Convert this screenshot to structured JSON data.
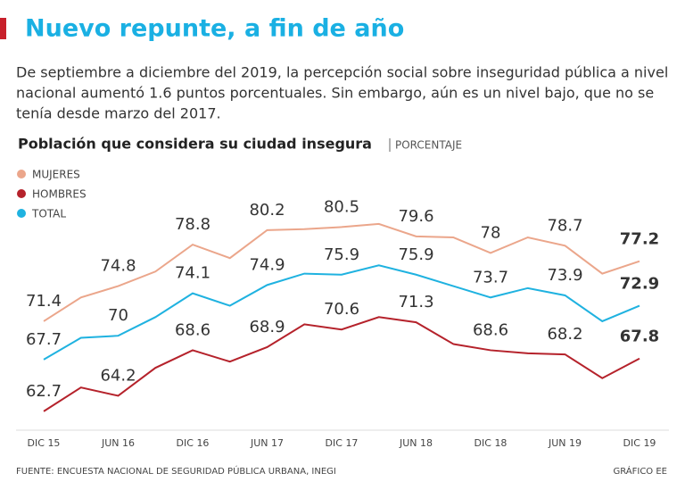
{
  "chart_data": {
    "type": "line",
    "title": "Nuevo repunte, a fin de año",
    "subtitle": [
      "De septiembre a diciembre del 2019, la percepción social sobre inseguridad pública a nivel",
      "nacional aumentó 1.6 puntos porcentuales. Sin embargo, aún es un nivel bajo, que no se",
      "tenía desde marzo del 2017."
    ],
    "chart_title": "Población que considera su ciudad insegura",
    "unit": "PORCENTAJE",
    "categories": [
      "DIC 15",
      null,
      "JUN 16",
      null,
      "DIC 16",
      null,
      "JUN 17",
      null,
      "DIC 17",
      null,
      "JUN 18",
      null,
      "DIC 18",
      null,
      "JUN 19",
      null,
      "DIC 19"
    ],
    "series": [
      {
        "name": "MUJERES",
        "color": "#eba68b",
        "values": [
          71.4,
          73.7,
          74.8,
          76.2,
          78.8,
          77.5,
          80.2,
          80.3,
          80.5,
          80.8,
          79.6,
          79.5,
          78,
          79.5,
          78.7,
          76.0,
          77.2
        ],
        "value_labels": [
          "71.4",
          null,
          "74.8",
          null,
          "78.8",
          null,
          "80.2",
          null,
          "80.5",
          null,
          "79.6",
          null,
          "78",
          null,
          "78.7",
          null,
          "77.2"
        ]
      },
      {
        "name": "HOMBRES",
        "color": "#b5222b",
        "values": [
          62.7,
          65.0,
          64.2,
          66.9,
          68.6,
          67.5,
          68.9,
          71.1,
          70.6,
          71.8,
          71.3,
          69.2,
          68.6,
          68.3,
          68.2,
          65.9,
          67.8
        ],
        "value_labels": [
          "62.7",
          null,
          "64.2",
          null,
          "68.6",
          null,
          "68.9",
          null,
          "70.6",
          null,
          "71.3",
          null,
          "68.6",
          null,
          "68.2",
          null,
          "67.8"
        ]
      },
      {
        "name": "TOTAL",
        "color": "#1fb2e0",
        "values": [
          67.7,
          69.8,
          70,
          71.8,
          74.1,
          72.9,
          74.9,
          76.0,
          75.9,
          76.8,
          75.9,
          74.8,
          73.7,
          74.6,
          73.9,
          71.4,
          72.9
        ],
        "value_labels": [
          "67.7",
          null,
          "70",
          null,
          "74.1",
          null,
          "74.9",
          null,
          "75.9",
          null,
          "75.9",
          null,
          "73.7",
          null,
          "73.9",
          null,
          "72.9"
        ]
      }
    ],
    "ylim": [
      57,
      87
    ],
    "source": "FUENTE: ENCUESTA NACIONAL DE SEGURIDAD PÚBLICA URBANA, INEGI",
    "credit": "GRÁFICO EE"
  }
}
